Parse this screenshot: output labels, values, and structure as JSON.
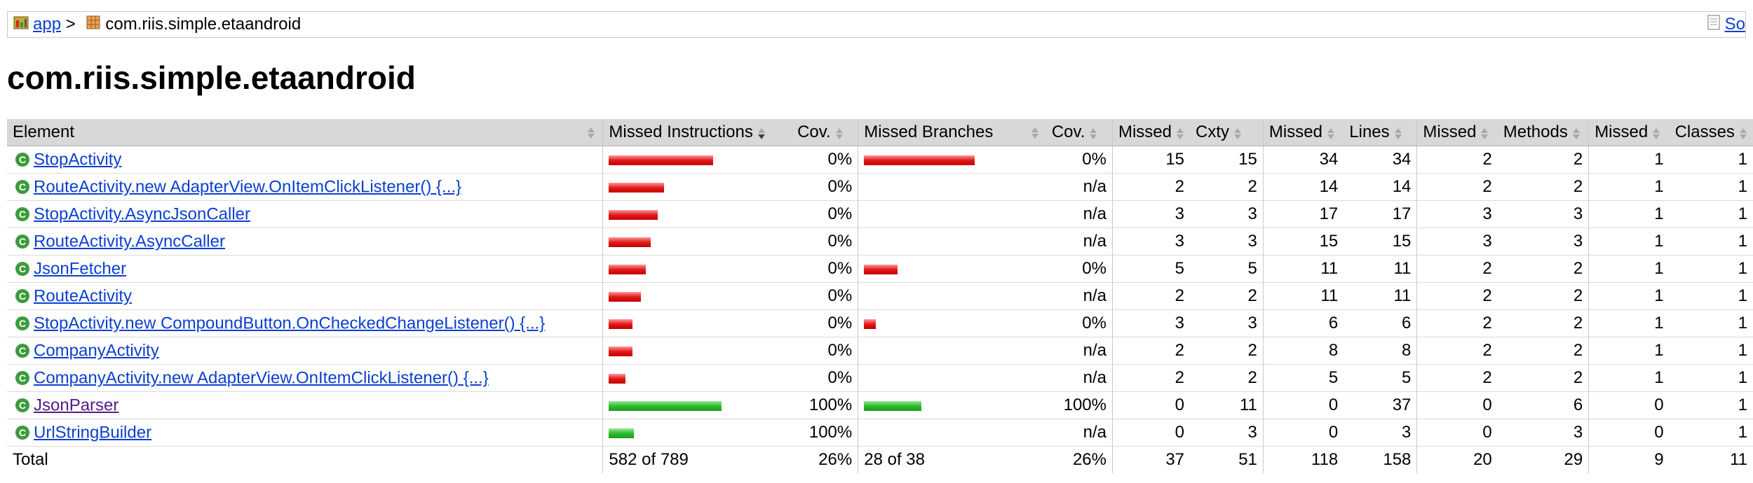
{
  "breadcrumb": {
    "app_label": "app",
    "separator": ">",
    "package_label": "com.riis.simple.etaandroid",
    "right_link": "So"
  },
  "page_title": "com.riis.simple.etaandroid",
  "table": {
    "headers": {
      "element": "Element",
      "missed_instructions": "Missed Instructions",
      "cov1": "Cov.",
      "missed_branches": "Missed Branches",
      "cov2": "Cov.",
      "missed_cxty": "Missed",
      "cxty": "Cxty",
      "missed_lines": "Missed",
      "lines": "Lines",
      "missed_methods": "Missed",
      "methods": "Methods",
      "missed_classes": "Missed",
      "classes": "Classes"
    },
    "rows": [
      {
        "name": "StopActivity",
        "visited": false,
        "instr_missed_frac": 0.62,
        "instr_covered_frac": 0,
        "instr_cov": "0%",
        "br_missed_frac": 0.66,
        "br_covered_frac": 0,
        "br_cov": "0%",
        "m_cxty": "15",
        "cxty": "15",
        "m_lines": "34",
        "lines": "34",
        "m_methods": "2",
        "methods": "2",
        "m_classes": "1",
        "classes": "1"
      },
      {
        "name": "RouteActivity.new AdapterView.OnItemClickListener() {...}",
        "visited": false,
        "instr_missed_frac": 0.33,
        "instr_covered_frac": 0,
        "instr_cov": "0%",
        "br_missed_frac": 0,
        "br_covered_frac": 0,
        "br_cov": "n/a",
        "m_cxty": "2",
        "cxty": "2",
        "m_lines": "14",
        "lines": "14",
        "m_methods": "2",
        "methods": "2",
        "m_classes": "1",
        "classes": "1"
      },
      {
        "name": "StopActivity.AsyncJsonCaller",
        "visited": false,
        "instr_missed_frac": 0.29,
        "instr_covered_frac": 0,
        "instr_cov": "0%",
        "br_missed_frac": 0,
        "br_covered_frac": 0,
        "br_cov": "n/a",
        "m_cxty": "3",
        "cxty": "3",
        "m_lines": "17",
        "lines": "17",
        "m_methods": "3",
        "methods": "3",
        "m_classes": "1",
        "classes": "1"
      },
      {
        "name": "RouteActivity.AsyncCaller",
        "visited": false,
        "instr_missed_frac": 0.25,
        "instr_covered_frac": 0,
        "instr_cov": "0%",
        "br_missed_frac": 0,
        "br_covered_frac": 0,
        "br_cov": "n/a",
        "m_cxty": "3",
        "cxty": "3",
        "m_lines": "15",
        "lines": "15",
        "m_methods": "3",
        "methods": "3",
        "m_classes": "1",
        "classes": "1"
      },
      {
        "name": "JsonFetcher",
        "visited": false,
        "instr_missed_frac": 0.22,
        "instr_covered_frac": 0,
        "instr_cov": "0%",
        "br_missed_frac": 0.2,
        "br_covered_frac": 0,
        "br_cov": "0%",
        "m_cxty": "5",
        "cxty": "5",
        "m_lines": "11",
        "lines": "11",
        "m_methods": "2",
        "methods": "2",
        "m_classes": "1",
        "classes": "1"
      },
      {
        "name": "RouteActivity",
        "visited": false,
        "instr_missed_frac": 0.19,
        "instr_covered_frac": 0,
        "instr_cov": "0%",
        "br_missed_frac": 0,
        "br_covered_frac": 0,
        "br_cov": "n/a",
        "m_cxty": "2",
        "cxty": "2",
        "m_lines": "11",
        "lines": "11",
        "m_methods": "2",
        "methods": "2",
        "m_classes": "1",
        "classes": "1"
      },
      {
        "name": "StopActivity.new CompoundButton.OnCheckedChangeListener() {...}",
        "visited": false,
        "instr_missed_frac": 0.14,
        "instr_covered_frac": 0,
        "instr_cov": "0%",
        "br_missed_frac": 0.07,
        "br_covered_frac": 0,
        "br_cov": "0%",
        "m_cxty": "3",
        "cxty": "3",
        "m_lines": "6",
        "lines": "6",
        "m_methods": "2",
        "methods": "2",
        "m_classes": "1",
        "classes": "1"
      },
      {
        "name": "CompanyActivity",
        "visited": false,
        "instr_missed_frac": 0.14,
        "instr_covered_frac": 0,
        "instr_cov": "0%",
        "br_missed_frac": 0,
        "br_covered_frac": 0,
        "br_cov": "n/a",
        "m_cxty": "2",
        "cxty": "2",
        "m_lines": "8",
        "lines": "8",
        "m_methods": "2",
        "methods": "2",
        "m_classes": "1",
        "classes": "1"
      },
      {
        "name": "CompanyActivity.new AdapterView.OnItemClickListener() {...}",
        "visited": false,
        "instr_missed_frac": 0.1,
        "instr_covered_frac": 0,
        "instr_cov": "0%",
        "br_missed_frac": 0,
        "br_covered_frac": 0,
        "br_cov": "n/a",
        "m_cxty": "2",
        "cxty": "2",
        "m_lines": "5",
        "lines": "5",
        "m_methods": "2",
        "methods": "2",
        "m_classes": "1",
        "classes": "1"
      },
      {
        "name": "JsonParser",
        "visited": true,
        "instr_missed_frac": 0,
        "instr_covered_frac": 0.67,
        "instr_cov": "100%",
        "br_missed_frac": 0,
        "br_covered_frac": 0.34,
        "br_cov": "100%",
        "m_cxty": "0",
        "cxty": "11",
        "m_lines": "0",
        "lines": "37",
        "m_methods": "0",
        "methods": "6",
        "m_classes": "0",
        "classes": "1"
      },
      {
        "name": "UrlStringBuilder",
        "visited": false,
        "instr_missed_frac": 0,
        "instr_covered_frac": 0.15,
        "instr_cov": "100%",
        "br_missed_frac": 0,
        "br_covered_frac": 0,
        "br_cov": "n/a",
        "m_cxty": "0",
        "cxty": "3",
        "m_lines": "0",
        "lines": "3",
        "m_methods": "0",
        "methods": "3",
        "m_classes": "0",
        "classes": "1"
      }
    ],
    "total": {
      "label": "Total",
      "instr": "582 of 789",
      "instr_cov": "26%",
      "br": "28 of 38",
      "br_cov": "26%",
      "m_cxty": "37",
      "cxty": "51",
      "m_lines": "118",
      "lines": "158",
      "m_methods": "20",
      "methods": "29",
      "m_classes": "9",
      "classes": "11"
    }
  },
  "colors": {
    "link": "#0b3fd1",
    "visited_link": "#551a8b",
    "header_bg": "#d8d8d8",
    "missed_bar": "#e21a1a",
    "covered_bar": "#2ebd2e",
    "element_icon": "#3c9b3c"
  }
}
